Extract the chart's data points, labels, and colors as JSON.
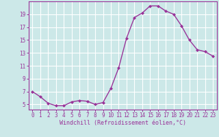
{
  "x": [
    0,
    1,
    2,
    3,
    4,
    5,
    6,
    7,
    8,
    9,
    10,
    11,
    12,
    13,
    14,
    15,
    16,
    17,
    18,
    19,
    20,
    21,
    22,
    23
  ],
  "y": [
    7.0,
    6.2,
    5.2,
    4.8,
    4.8,
    5.4,
    5.6,
    5.5,
    5.0,
    5.3,
    7.5,
    10.7,
    15.3,
    18.5,
    19.2,
    20.3,
    20.3,
    19.5,
    19.0,
    17.2,
    15.0,
    13.5,
    13.2,
    12.5
  ],
  "line_color": "#993399",
  "marker": "D",
  "marker_size": 2.0,
  "line_width": 1.0,
  "bg_color": "#cce8e8",
  "grid_color": "#ffffff",
  "xlabel": "Windchill (Refroidissement éolien,°C)",
  "xlabel_color": "#993399",
  "xlabel_fontsize": 6.0,
  "tick_color": "#993399",
  "tick_fontsize": 5.5,
  "yticks": [
    5,
    7,
    9,
    11,
    13,
    15,
    17,
    19
  ],
  "ylim": [
    4.2,
    21.0
  ],
  "xlim": [
    -0.5,
    23.5
  ],
  "xticks": [
    0,
    1,
    2,
    3,
    4,
    5,
    6,
    7,
    8,
    9,
    10,
    11,
    12,
    13,
    14,
    15,
    16,
    17,
    18,
    19,
    20,
    21,
    22,
    23
  ],
  "spine_color": "#993399"
}
